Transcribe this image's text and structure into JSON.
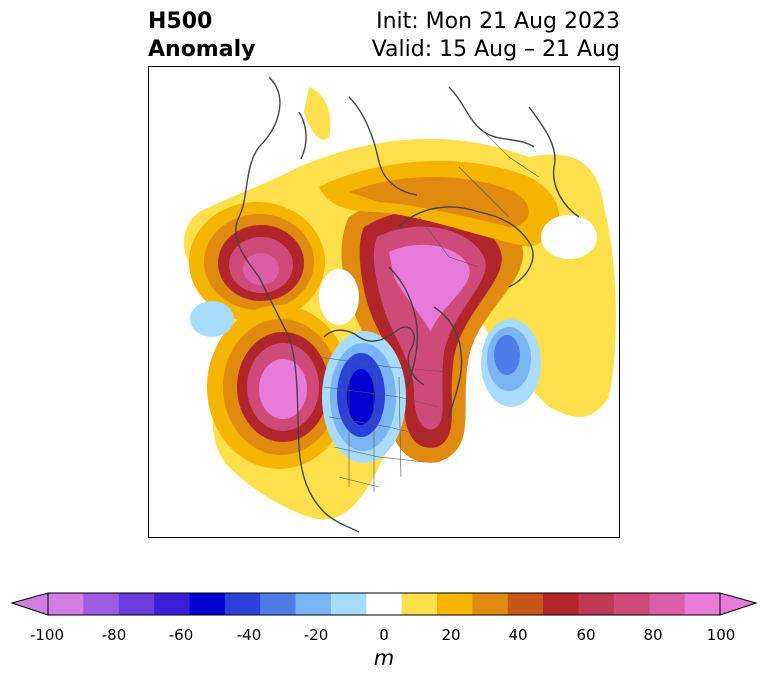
{
  "header": {
    "title_line1": "H500",
    "title_line2": "Anomaly",
    "init": "Init: Mon 21 Aug 2023",
    "valid": "Valid: 15 Aug – 21 Aug"
  },
  "map": {
    "projection": "north-polar-stereographic",
    "variable": "500 hPa geopotential height anomaly",
    "features": [
      {
        "name": "ridge-alaska",
        "sign": "positive"
      },
      {
        "name": "ridge-pacific-west-coast",
        "sign": "positive"
      },
      {
        "name": "ridge-greenland-north-atlantic",
        "sign": "positive"
      },
      {
        "name": "ridge-arctic-eurasia",
        "sign": "positive"
      },
      {
        "name": "trough-central-canada",
        "sign": "negative"
      },
      {
        "name": "trough-north-atlantic",
        "sign": "negative"
      },
      {
        "name": "trough-north-pacific",
        "sign": "negative"
      }
    ]
  },
  "colorbar": {
    "ticks": [
      "-100",
      "-80",
      "-60",
      "-40",
      "-20",
      "0",
      "20",
      "40",
      "60",
      "80",
      "100"
    ],
    "unit": "m",
    "colors": [
      "#d27de4",
      "#9e5ce2",
      "#6a3ddc",
      "#3b1fd8",
      "#0000d0",
      "#2a42da",
      "#4f7ce6",
      "#7ab4f2",
      "#a8dcfc",
      "#ffffff",
      "#fde04c",
      "#f4b400",
      "#e08a10",
      "#c85618",
      "#b0262a",
      "#bf3a54",
      "#cf4a78",
      "#dc5ea6",
      "#e87ada"
    ],
    "min_color": "#d27de4",
    "max_color": "#e87ada"
  }
}
